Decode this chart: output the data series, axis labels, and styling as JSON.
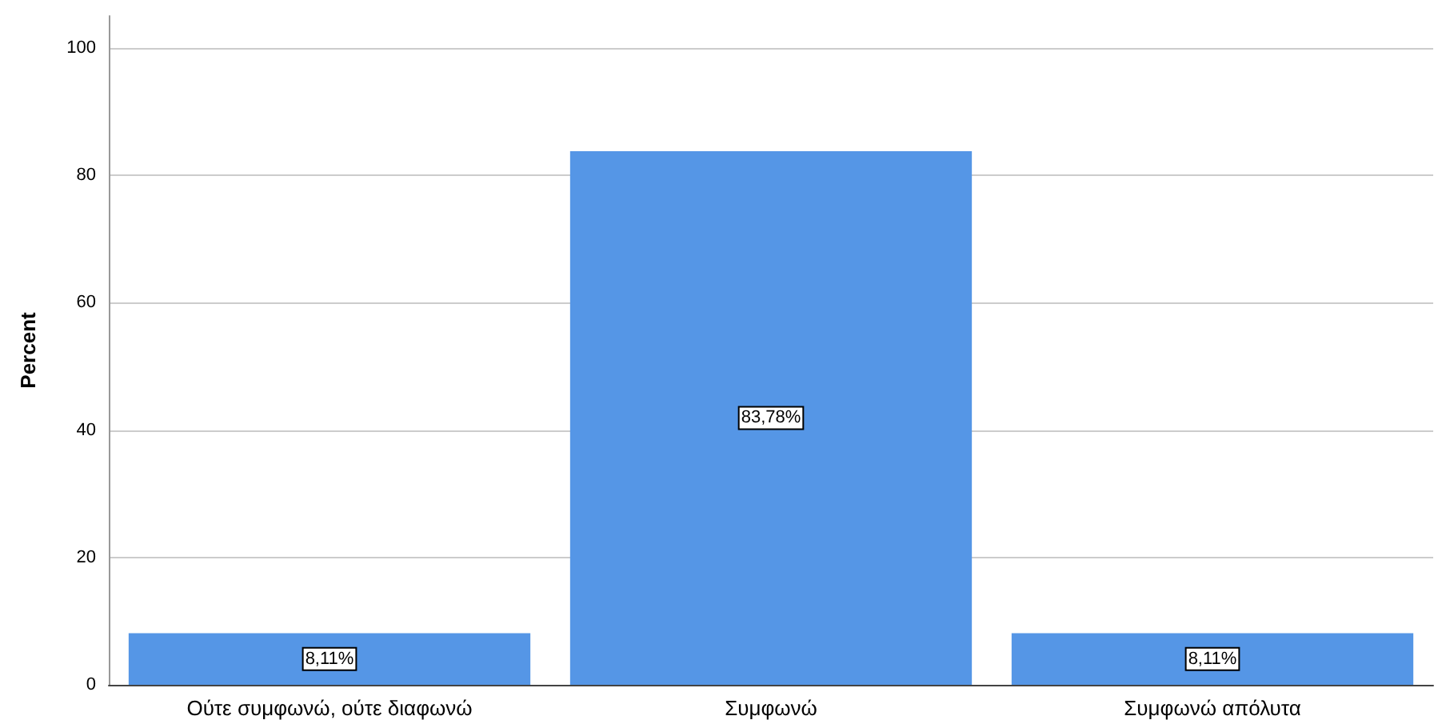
{
  "chart_data": {
    "type": "bar",
    "ylabel": "Percent",
    "categories": [
      "Ούτε συμφωνώ, ούτε διαφωνώ",
      "Συμφωνώ",
      "Συμφωνώ απόλυτα"
    ],
    "values": [
      8.11,
      83.78,
      8.11
    ],
    "value_labels": [
      "8,11%",
      "83,78%",
      "8,11%"
    ],
    "color": "#5596e6",
    "ylim": [
      0,
      105
    ],
    "yticks": [
      0,
      20,
      40,
      60,
      80,
      100
    ],
    "grid": "y"
  }
}
